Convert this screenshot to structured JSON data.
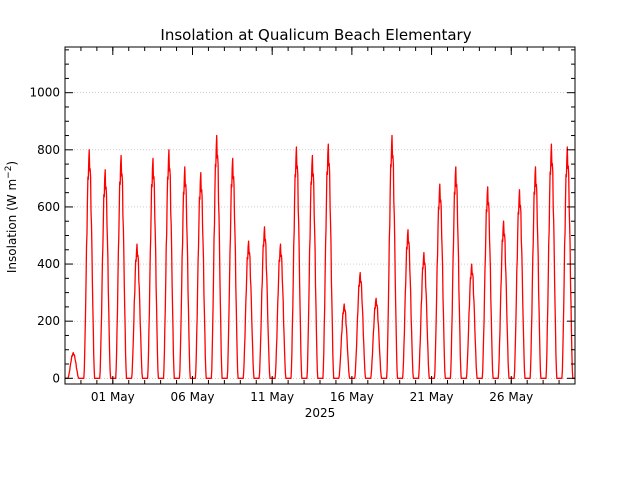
{
  "chart_data": {
    "type": "line",
    "title": "Insolation at Qualicum Beach Elementary",
    "xlabel": "2025",
    "ylabel": "Insolation (W m",
    "ylabel_exponent": "−2",
    "ylabel_suffix": ")",
    "x_range": [
      "2025-04-28",
      "2025-05-30"
    ],
    "ylim": [
      -20,
      1160
    ],
    "grid": true,
    "x_ticks": [
      {
        "date": "2025-05-01",
        "label": "01 May"
      },
      {
        "date": "2025-05-06",
        "label": "06 May"
      },
      {
        "date": "2025-05-11",
        "label": "11 May"
      },
      {
        "date": "2025-05-16",
        "label": "16 May"
      },
      {
        "date": "2025-05-21",
        "label": "21 May"
      },
      {
        "date": "2025-05-26",
        "label": "26 May"
      }
    ],
    "y_ticks": [
      0,
      200,
      400,
      600,
      800,
      1000
    ],
    "series": [
      {
        "color": "#ff0000",
        "daily_peak_x": [
          "2025-04-28",
          "2025-04-29",
          "2025-04-30",
          "2025-05-01",
          "2025-05-02",
          "2025-05-03",
          "2025-05-04",
          "2025-05-05",
          "2025-05-06",
          "2025-05-07",
          "2025-05-08",
          "2025-05-09",
          "2025-05-10",
          "2025-05-11",
          "2025-05-12",
          "2025-05-13",
          "2025-05-14",
          "2025-05-15",
          "2025-05-16",
          "2025-05-17",
          "2025-05-18",
          "2025-05-19",
          "2025-05-20",
          "2025-05-21",
          "2025-05-22",
          "2025-05-23",
          "2025-05-24",
          "2025-05-25",
          "2025-05-26",
          "2025-05-27",
          "2025-05-28",
          "2025-05-29"
        ],
        "daily_peak_y": [
          90,
          800,
          730,
          780,
          470,
          770,
          800,
          740,
          720,
          850,
          770,
          480,
          530,
          470,
          810,
          780,
          820,
          260,
          370,
          280,
          850,
          520,
          440,
          680,
          740,
          400,
          670,
          550,
          660,
          740,
          820,
          810
        ]
      }
    ]
  }
}
